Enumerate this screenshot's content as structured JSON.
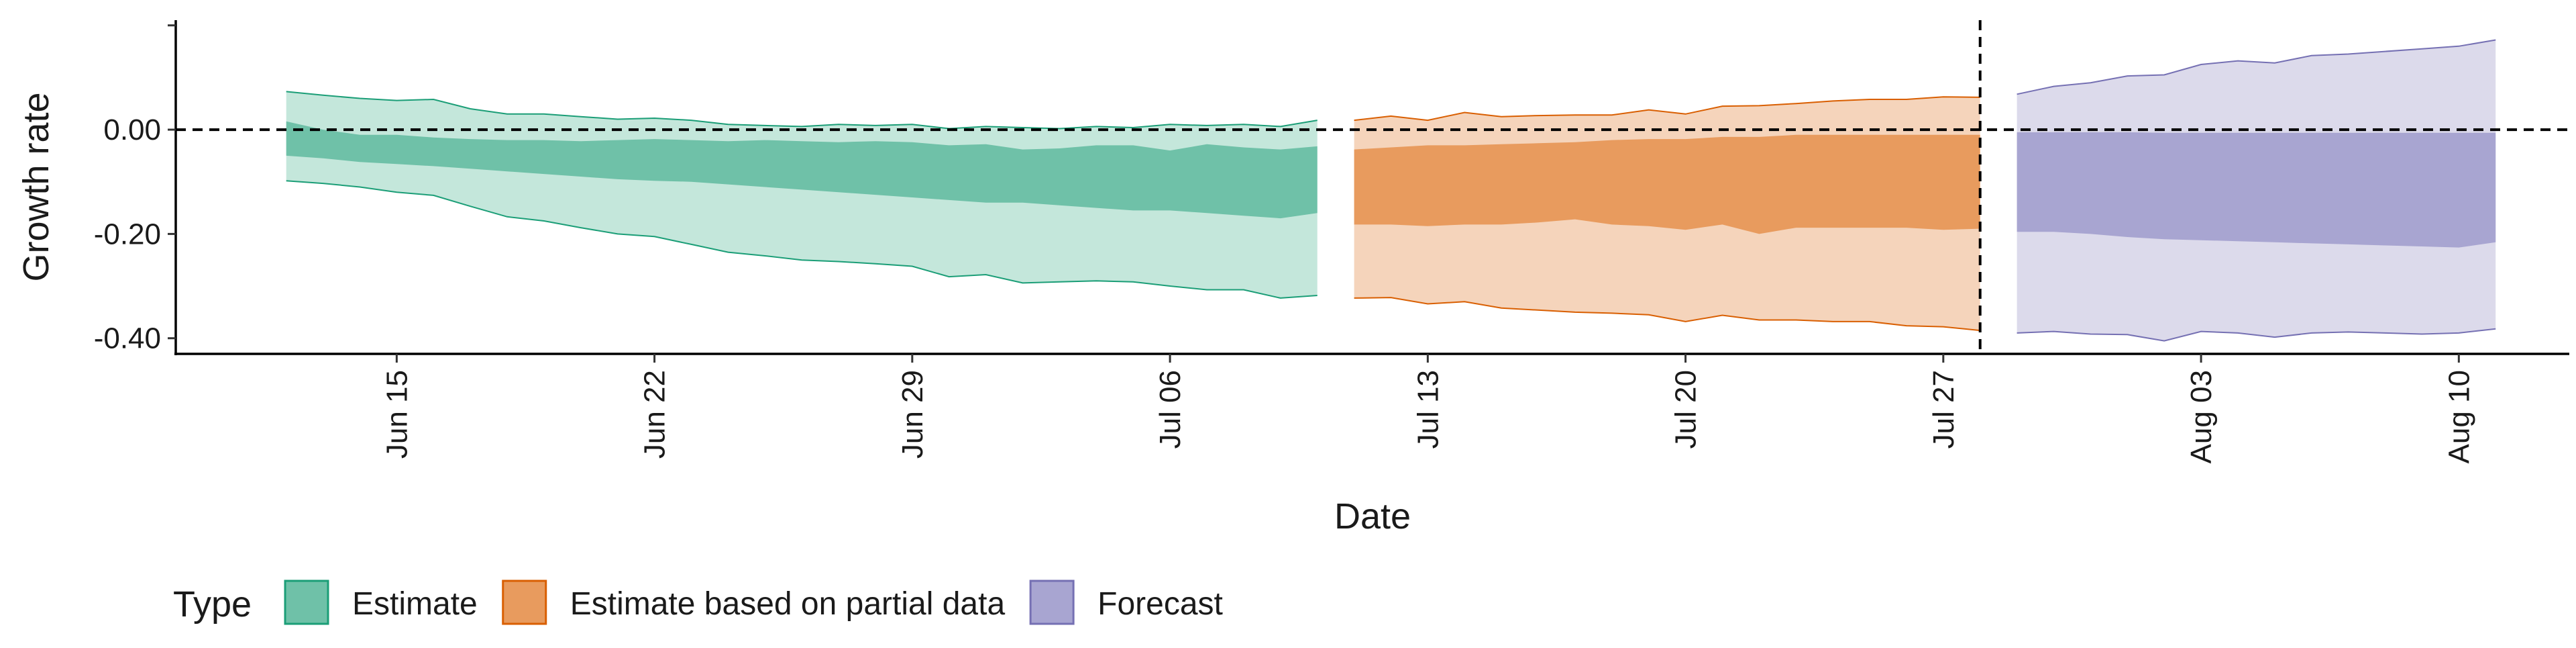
{
  "chart_data": {
    "type": "area",
    "xlabel": "Date",
    "ylabel": "Growth rate",
    "ylim": [
      -0.43,
      0.21
    ],
    "xlim": [
      "2020-06-09",
      "2020-08-13"
    ],
    "grid": false,
    "legend_position": "bottom-left",
    "legend_title": "Type",
    "y_ticks": [
      0.2,
      0.0,
      -0.2,
      -0.4
    ],
    "y_tick_labels": [
      "",
      "0.00",
      "-0.20",
      "-0.40"
    ],
    "x_ticks": [
      "2020-06-15",
      "2020-06-22",
      "2020-06-29",
      "2020-07-06",
      "2020-07-13",
      "2020-07-20",
      "2020-07-27",
      "2020-08-03",
      "2020-08-10"
    ],
    "x_tick_labels": [
      "Jun 15",
      "Jun 22",
      "Jun 29",
      "Jul 06",
      "Jul 13",
      "Jul 20",
      "Jul 27",
      "Aug 03",
      "Aug 10"
    ],
    "reference_lines": [
      {
        "axis": "y",
        "value": 0.0,
        "style": "dashed"
      },
      {
        "axis": "x",
        "value": "2020-07-28",
        "style": "dashed"
      }
    ],
    "series": [
      {
        "name": "Estimate",
        "fill": "#6fc1a8",
        "fill_outer": "#c4e7db",
        "stroke": "#1b9e77",
        "dates": [
          "2020-06-12",
          "2020-06-13",
          "2020-06-14",
          "2020-06-15",
          "2020-06-16",
          "2020-06-17",
          "2020-06-18",
          "2020-06-19",
          "2020-06-20",
          "2020-06-21",
          "2020-06-22",
          "2020-06-23",
          "2020-06-24",
          "2020-06-25",
          "2020-06-26",
          "2020-06-27",
          "2020-06-28",
          "2020-06-29",
          "2020-06-30",
          "2020-07-01",
          "2020-07-02",
          "2020-07-03",
          "2020-07-04",
          "2020-07-05",
          "2020-07-06",
          "2020-07-07",
          "2020-07-08",
          "2020-07-09",
          "2020-07-10"
        ],
        "outer_upper": [
          0.073,
          0.066,
          0.06,
          0.056,
          0.058,
          0.04,
          0.03,
          0.03,
          0.025,
          0.02,
          0.022,
          0.018,
          0.01,
          0.008,
          0.006,
          0.01,
          0.008,
          0.01,
          0.002,
          0.006,
          0.004,
          0.002,
          0.006,
          0.004,
          0.01,
          0.008,
          0.01,
          0.006,
          0.018
        ],
        "inner_upper": [
          0.016,
          0.0,
          -0.01,
          -0.01,
          -0.015,
          -0.018,
          -0.02,
          -0.02,
          -0.022,
          -0.02,
          -0.018,
          -0.02,
          -0.022,
          -0.02,
          -0.022,
          -0.024,
          -0.022,
          -0.024,
          -0.03,
          -0.028,
          -0.038,
          -0.036,
          -0.03,
          -0.03,
          -0.04,
          -0.028,
          -0.034,
          -0.038,
          -0.032
        ],
        "inner_lower": [
          -0.05,
          -0.055,
          -0.062,
          -0.066,
          -0.07,
          -0.075,
          -0.08,
          -0.085,
          -0.09,
          -0.095,
          -0.098,
          -0.1,
          -0.105,
          -0.11,
          -0.115,
          -0.12,
          -0.125,
          -0.13,
          -0.135,
          -0.14,
          -0.14,
          -0.145,
          -0.15,
          -0.155,
          -0.155,
          -0.16,
          -0.165,
          -0.17,
          -0.16
        ],
        "outer_lower": [
          -0.098,
          -0.103,
          -0.11,
          -0.12,
          -0.126,
          -0.147,
          -0.167,
          -0.175,
          -0.188,
          -0.2,
          -0.205,
          -0.22,
          -0.235,
          -0.242,
          -0.25,
          -0.253,
          -0.257,
          -0.262,
          -0.282,
          -0.278,
          -0.294,
          -0.292,
          -0.29,
          -0.292,
          -0.3,
          -0.307,
          -0.307,
          -0.323,
          -0.318
        ]
      },
      {
        "name": "Estimate based on partial data",
        "fill": "#e89b5e",
        "fill_outer": "#f5d4bb",
        "stroke": "#d95f02",
        "dates": [
          "2020-07-11",
          "2020-07-12",
          "2020-07-13",
          "2020-07-14",
          "2020-07-15",
          "2020-07-16",
          "2020-07-17",
          "2020-07-18",
          "2020-07-19",
          "2020-07-20",
          "2020-07-21",
          "2020-07-22",
          "2020-07-23",
          "2020-07-24",
          "2020-07-25",
          "2020-07-26",
          "2020-07-27",
          "2020-07-28"
        ],
        "outer_upper": [
          0.018,
          0.026,
          0.018,
          0.033,
          0.025,
          0.027,
          0.028,
          0.028,
          0.038,
          0.03,
          0.045,
          0.046,
          0.05,
          0.055,
          0.058,
          0.058,
          0.063,
          0.062
        ],
        "inner_upper": [
          -0.038,
          -0.034,
          -0.03,
          -0.03,
          -0.028,
          -0.026,
          -0.024,
          -0.02,
          -0.018,
          -0.018,
          -0.014,
          -0.014,
          -0.01,
          -0.01,
          -0.01,
          -0.01,
          -0.01,
          -0.01
        ],
        "inner_lower": [
          -0.182,
          -0.182,
          -0.185,
          -0.182,
          -0.182,
          -0.178,
          -0.172,
          -0.182,
          -0.185,
          -0.192,
          -0.182,
          -0.2,
          -0.188,
          -0.188,
          -0.188,
          -0.188,
          -0.192,
          -0.19
        ],
        "outer_lower": [
          -0.323,
          -0.322,
          -0.334,
          -0.33,
          -0.342,
          -0.346,
          -0.35,
          -0.352,
          -0.355,
          -0.368,
          -0.356,
          -0.365,
          -0.365,
          -0.368,
          -0.368,
          -0.376,
          -0.378,
          -0.385
        ]
      },
      {
        "name": "Forecast",
        "fill": "#a8a5d1",
        "fill_outer": "#dcdaeb",
        "stroke": "#7570b3",
        "dates": [
          "2020-07-29",
          "2020-07-30",
          "2020-07-31",
          "2020-08-01",
          "2020-08-02",
          "2020-08-03",
          "2020-08-04",
          "2020-08-05",
          "2020-08-06",
          "2020-08-07",
          "2020-08-08",
          "2020-08-09",
          "2020-08-10",
          "2020-08-11"
        ],
        "outer_upper": [
          0.068,
          0.083,
          0.09,
          0.103,
          0.105,
          0.125,
          0.132,
          0.128,
          0.142,
          0.145,
          0.15,
          0.155,
          0.16,
          0.172
        ],
        "inner_upper": [
          -0.005,
          -0.005,
          -0.005,
          -0.005,
          -0.006,
          -0.006,
          -0.006,
          -0.006,
          -0.006,
          -0.006,
          -0.006,
          -0.006,
          -0.006,
          -0.006
        ],
        "inner_lower": [
          -0.196,
          -0.196,
          -0.2,
          -0.206,
          -0.21,
          -0.212,
          -0.214,
          -0.216,
          -0.218,
          -0.22,
          -0.222,
          -0.224,
          -0.226,
          -0.216
        ],
        "outer_lower": [
          -0.39,
          -0.387,
          -0.392,
          -0.393,
          -0.405,
          -0.387,
          -0.39,
          -0.398,
          -0.39,
          -0.388,
          -0.39,
          -0.392,
          -0.39,
          -0.382
        ]
      }
    ]
  }
}
